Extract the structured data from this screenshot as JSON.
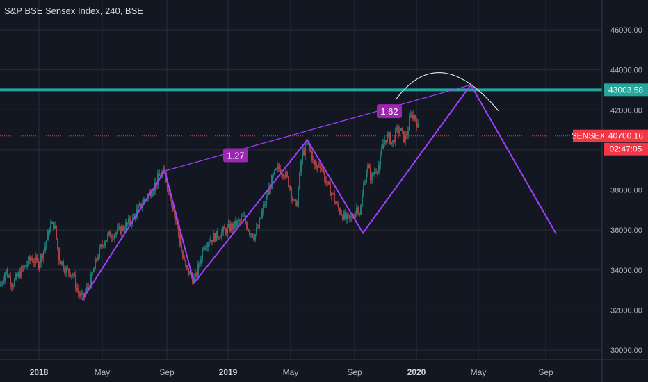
{
  "chart_data": {
    "type": "candlestick",
    "title": "S&P BSE Sensex Index, 240, BSE",
    "y_ticks": [
      "30000.00",
      "32000.00",
      "34000.00",
      "36000.00",
      "38000.00",
      "42000.00",
      "44000.00",
      "46000.00"
    ],
    "ylim": [
      29600,
      47000
    ],
    "x_ticks": [
      {
        "label": "2018",
        "bold": true
      },
      {
        "label": "May",
        "bold": false
      },
      {
        "label": "Sep",
        "bold": false
      },
      {
        "label": "2019",
        "bold": true
      },
      {
        "label": "May",
        "bold": false
      },
      {
        "label": "Sep",
        "bold": false
      },
      {
        "label": "2020",
        "bold": true
      },
      {
        "label": "May",
        "bold": false
      },
      {
        "label": "Sep",
        "bold": false
      }
    ],
    "price_path": [
      [
        0,
        33200
      ],
      [
        8,
        34000
      ],
      [
        18,
        33300
      ],
      [
        30,
        33900
      ],
      [
        45,
        34600
      ],
      [
        55,
        34300
      ],
      [
        65,
        35200
      ],
      [
        72,
        36200
      ],
      [
        78,
        36300
      ],
      [
        85,
        34600
      ],
      [
        95,
        34000
      ],
      [
        105,
        33800
      ],
      [
        112,
        32900
      ],
      [
        119,
        32600
      ],
      [
        130,
        33400
      ],
      [
        140,
        34700
      ],
      [
        150,
        35500
      ],
      [
        160,
        35800
      ],
      [
        170,
        35900
      ],
      [
        180,
        36200
      ],
      [
        190,
        36500
      ],
      [
        200,
        37100
      ],
      [
        210,
        37600
      ],
      [
        220,
        38100
      ],
      [
        228,
        38600
      ],
      [
        234,
        38900
      ],
      [
        238,
        38700
      ],
      [
        244,
        37800
      ],
      [
        250,
        37000
      ],
      [
        256,
        36000
      ],
      [
        262,
        34700
      ],
      [
        268,
        34000
      ],
      [
        275,
        33700
      ],
      [
        280,
        33500
      ],
      [
        286,
        34200
      ],
      [
        292,
        35200
      ],
      [
        300,
        35500
      ],
      [
        310,
        35700
      ],
      [
        320,
        35900
      ],
      [
        330,
        36100
      ],
      [
        340,
        36300
      ],
      [
        350,
        36600
      ],
      [
        358,
        36000
      ],
      [
        366,
        35700
      ],
      [
        372,
        36200
      ],
      [
        378,
        37000
      ],
      [
        385,
        37800
      ],
      [
        392,
        38600
      ],
      [
        400,
        39100
      ],
      [
        408,
        38900
      ],
      [
        416,
        38300
      ],
      [
        422,
        37400
      ],
      [
        426,
        37100
      ],
      [
        430,
        38300
      ],
      [
        434,
        39800
      ],
      [
        438,
        40000
      ],
      [
        442,
        40300
      ],
      [
        448,
        39800
      ],
      [
        454,
        39000
      ],
      [
        460,
        39400
      ],
      [
        466,
        38700
      ],
      [
        472,
        38100
      ],
      [
        478,
        37800
      ],
      [
        484,
        37200
      ],
      [
        490,
        36900
      ],
      [
        496,
        36600
      ],
      [
        502,
        36500
      ],
      [
        508,
        36700
      ],
      [
        514,
        37200
      ],
      [
        518,
        36800
      ],
      [
        522,
        38000
      ],
      [
        528,
        39200
      ],
      [
        534,
        38600
      ],
      [
        540,
        39000
      ],
      [
        546,
        39300
      ],
      [
        552,
        40500
      ],
      [
        558,
        40700
      ],
      [
        564,
        40300
      ],
      [
        570,
        40900
      ],
      [
        576,
        41000
      ],
      [
        582,
        40500
      ],
      [
        586,
        40900
      ],
      [
        590,
        41600
      ],
      [
        594,
        41800
      ],
      [
        598,
        41500
      ],
      [
        602,
        41000
      ]
    ],
    "annotations": {
      "resistance_level": 43003.58,
      "resistance_label": "43003.58",
      "last_price": 40700.16,
      "last_price_label": "40700.16",
      "symbol_label": "SENSEX",
      "countdown_label": "02:47:05",
      "ratio_labels": [
        "1.27",
        "1.62"
      ],
      "pattern_points": [
        [
          118,
          32500
        ],
        [
          237,
          38950
        ],
        [
          279,
          33350
        ],
        [
          442,
          40500
        ],
        [
          522,
          35850
        ],
        [
          677,
          43250
        ],
        [
          800,
          35800
        ]
      ],
      "upper_trendline": [
        [
          237,
          38950
        ],
        [
          677,
          43250
        ]
      ],
      "arc": {
        "start": [
          570,
          42550
        ],
        "peak": [
          638,
          43850
        ],
        "end": [
          717,
          41950
        ]
      }
    },
    "colors": {
      "background": "#131722",
      "grid": "#2a2e39",
      "up": "#26a69a",
      "down": "#ef5350",
      "pattern": "#9c27b0",
      "pattern_line": "#a33fff",
      "resistance": "#26a69a",
      "last_price": "#f23645",
      "ratio_box": "#9c27b0"
    }
  }
}
